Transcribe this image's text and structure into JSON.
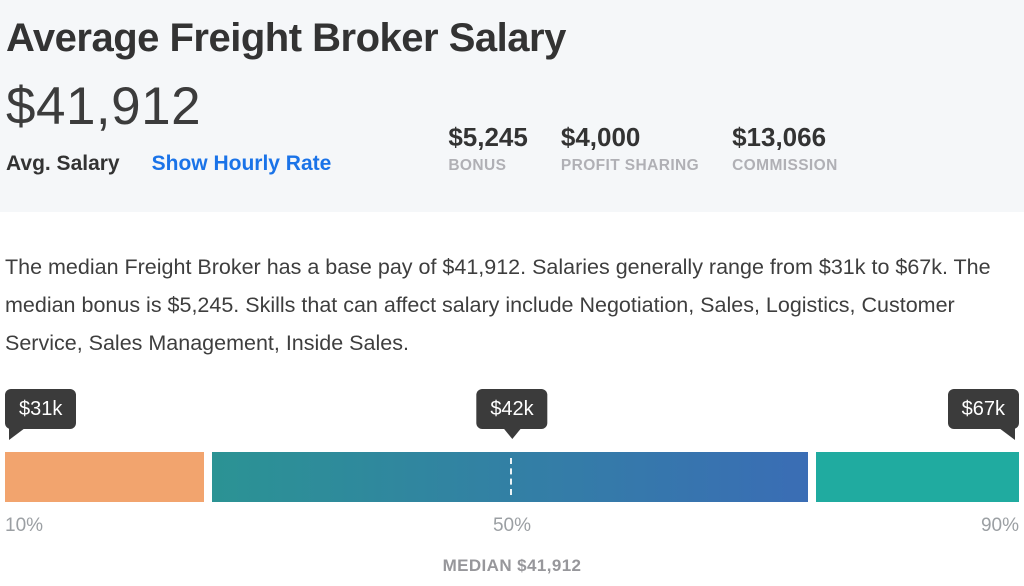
{
  "header": {
    "title": "Average Freight Broker Salary",
    "avg_salary_value": "$41,912",
    "avg_salary_label": "Avg. Salary",
    "hourly_link_label": "Show Hourly Rate",
    "stats": [
      {
        "value": "$5,245",
        "label": "BONUS"
      },
      {
        "value": "$4,000",
        "label": "PROFIT SHARING"
      },
      {
        "value": "$13,066",
        "label": "COMMISSION"
      }
    ]
  },
  "description": "The median Freight Broker has a base pay of $41,912. Salaries generally range from $31k to $67k. The median bonus is $5,245. Skills that can affect salary include Negotiation, Sales, Logistics, Customer Service, Sales Management, Inside Sales.",
  "chart_data": {
    "type": "bar",
    "points": [
      {
        "percentile": "10%",
        "label": "$31k",
        "value_usd": 31000
      },
      {
        "percentile": "50%",
        "label": "$42k",
        "value_usd": 41912
      },
      {
        "percentile": "90%",
        "label": "$67k",
        "value_usd": 67000
      }
    ],
    "median_caption": "MEDIAN $41,912",
    "legend": "none",
    "grid": false,
    "colors": {
      "low_segment": "#f2a46e",
      "mid_segment_gradient_start": "#2b9394",
      "mid_segment_gradient_end": "#3a6db5",
      "high_segment": "#20aba0",
      "tooltip_bg": "#3b3b3b",
      "link_accent": "#1a73e8",
      "header_bg": "#f5f7f9"
    }
  }
}
